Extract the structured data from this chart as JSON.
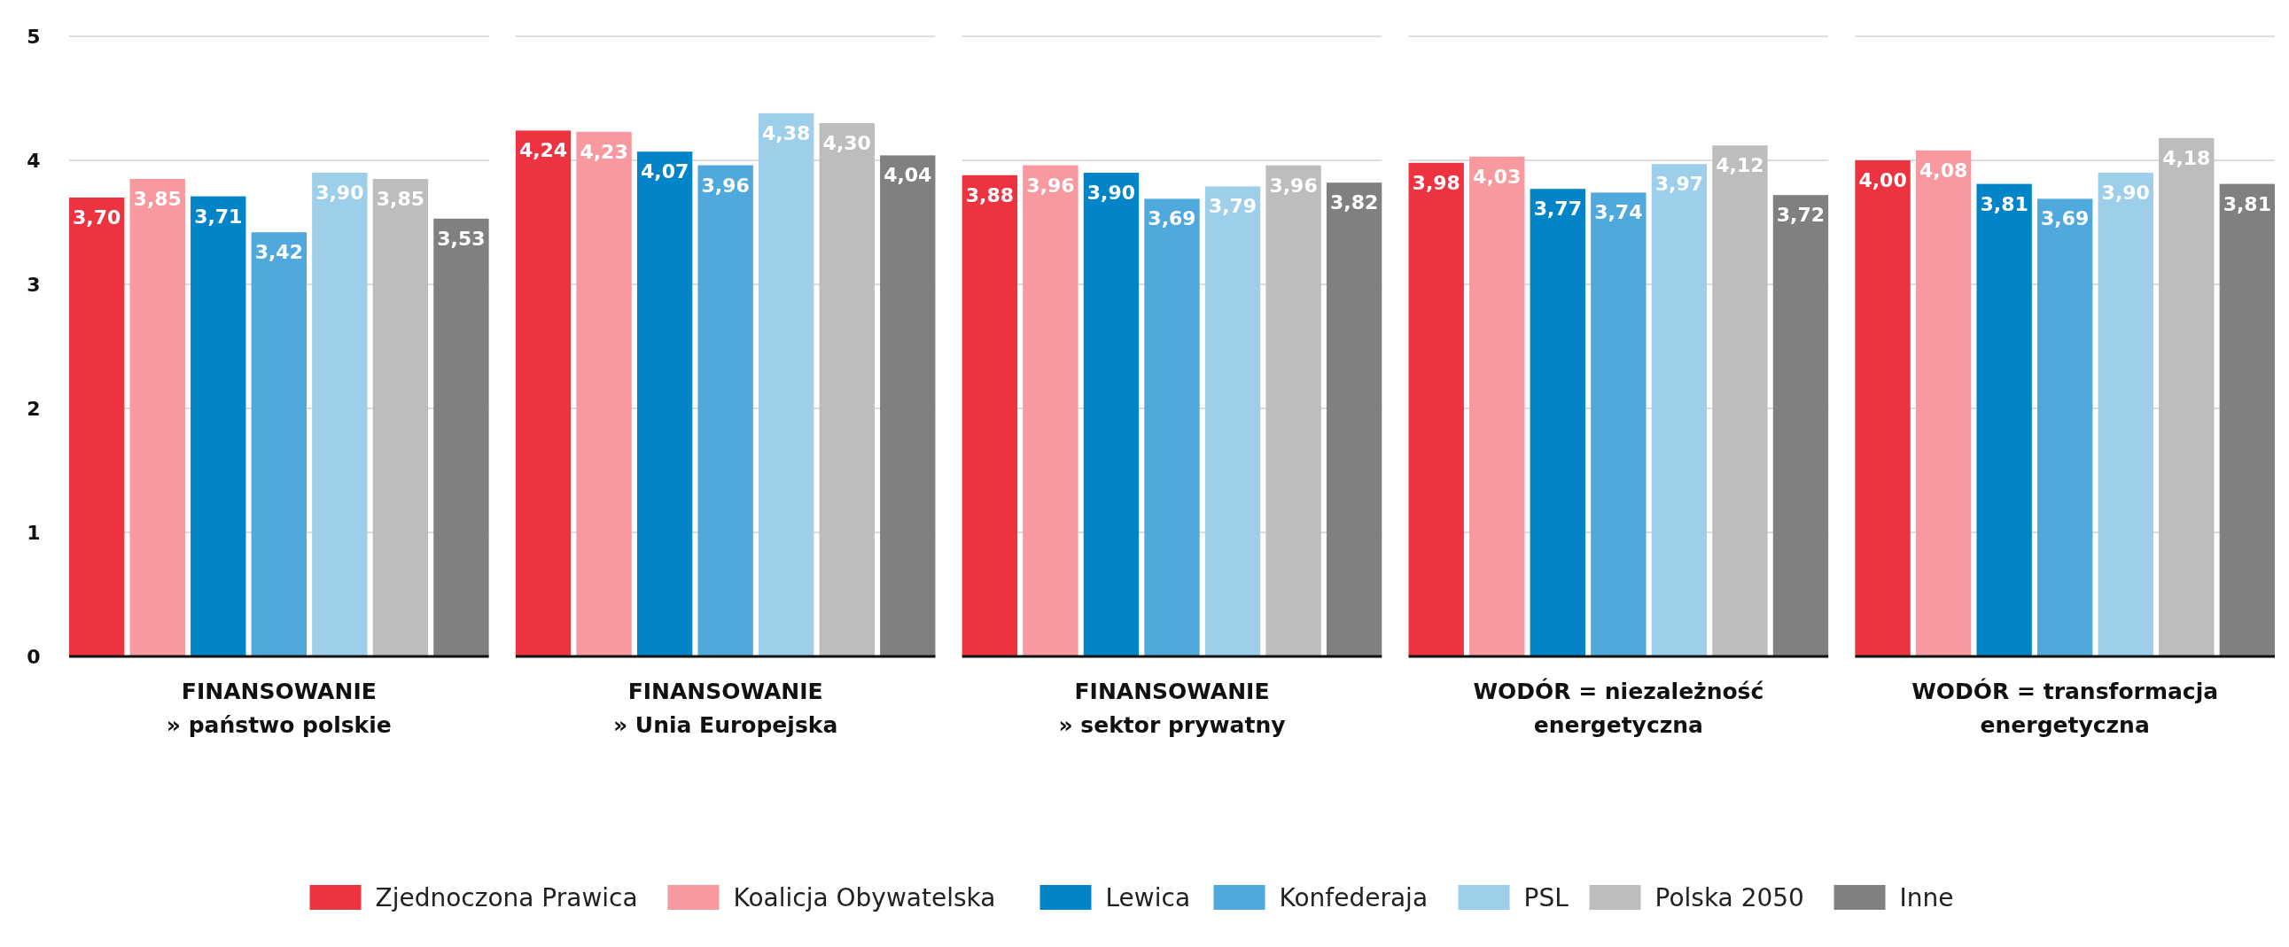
{
  "chart_data": {
    "type": "bar",
    "categories": [
      "FINANSOWANIE\n» państwo polskie",
      "FINANSOWANIE\n» Unia Europejska",
      "FINANSOWANIE\n» sektor prywatny",
      "WODÓR = niezależność\nenergetyczna",
      "WODÓR = transformacja\nenergetyczna"
    ],
    "series": [
      {
        "name": "Zjednoczona Prawica",
        "color": "#ee3340",
        "values": [
          3.7,
          4.24,
          3.88,
          3.98,
          4.0
        ],
        "value_labels": [
          "3,70",
          "4,24",
          "3,88",
          "3,98",
          "4,00"
        ]
      },
      {
        "name": "Koalicja Obywatelska",
        "color": "#f7999f",
        "values": [
          3.85,
          4.23,
          3.96,
          4.03,
          4.08
        ],
        "value_labels": [
          "3,85",
          "4,23",
          "3,96",
          "4,03",
          "4,08"
        ]
      },
      {
        "name": "Lewica",
        "color": "#0284c9",
        "values": [
          3.71,
          4.07,
          3.9,
          3.77,
          3.81
        ],
        "value_labels": [
          "3,71",
          "4,07",
          "3,90",
          "3,77",
          "3,81"
        ]
      },
      {
        "name": "Konfederaja",
        "color": "#4fa9dc",
        "values": [
          3.42,
          3.96,
          3.69,
          3.74,
          3.69
        ],
        "value_labels": [
          "3,42",
          "3,96",
          "3,69",
          "3,74",
          "3,69"
        ]
      },
      {
        "name": "PSL",
        "color": "#9dcfeb",
        "values": [
          3.9,
          4.38,
          3.79,
          3.97,
          3.9
        ],
        "value_labels": [
          "3,90",
          "4,38",
          "3,79",
          "3,97",
          "3,90"
        ]
      },
      {
        "name": "Polska 2050",
        "color": "#bdbdbd",
        "values": [
          3.85,
          4.3,
          3.96,
          4.12,
          4.18
        ],
        "value_labels": [
          "3,85",
          "4,30",
          "3,96",
          "4,12",
          "4,18"
        ]
      },
      {
        "name": "Inne",
        "color": "#808080",
        "values": [
          3.53,
          4.04,
          3.82,
          3.72,
          3.81
        ],
        "value_labels": [
          "3,53",
          "4,04",
          "3,82",
          "3,72",
          "3,81"
        ]
      }
    ],
    "ylim": [
      0,
      5
    ],
    "yticks": [
      0,
      1,
      2,
      3,
      4,
      5
    ],
    "grid": "y",
    "legend": "bottom"
  }
}
